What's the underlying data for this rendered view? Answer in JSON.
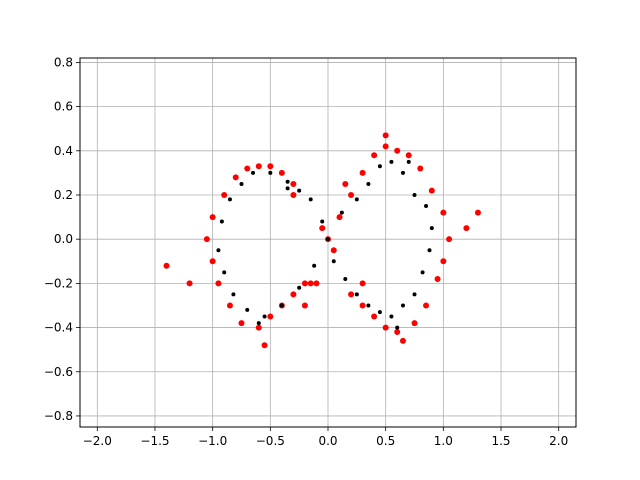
{
  "chart_data": {
    "type": "scatter",
    "title": "",
    "xlabel": "",
    "ylabel": "",
    "xlim": [
      -2.15,
      2.15
    ],
    "ylim": [
      -0.85,
      0.82
    ],
    "x_ticks": [
      -2.0,
      -1.5,
      -1.0,
      -0.5,
      0.0,
      0.5,
      1.0,
      1.5,
      2.0
    ],
    "x_tick_labels": [
      "−2.0",
      "−1.5",
      "−1.0",
      "−0.5",
      "0.0",
      "0.5",
      "1.0",
      "1.5",
      "2.0"
    ],
    "y_ticks": [
      -0.8,
      -0.6,
      -0.4,
      -0.2,
      0.0,
      0.2,
      0.4,
      0.6,
      0.8
    ],
    "y_tick_labels": [
      "−0.8",
      "−0.6",
      "−0.4",
      "−0.2",
      "0.0",
      "0.2",
      "0.4",
      "0.6",
      "0.8"
    ],
    "grid": true,
    "series": [
      {
        "color": "#ff0000",
        "marker_size": 3,
        "points": [
          [
            -0.1,
            -0.2
          ],
          [
            0.1,
            0.1
          ],
          [
            0.2,
            0.2
          ],
          [
            -0.2,
            -0.3
          ],
          [
            0.0,
            0.0
          ],
          [
            0.15,
            0.25
          ],
          [
            -0.15,
            -0.2
          ],
          [
            0.05,
            -0.05
          ],
          [
            -0.05,
            0.05
          ],
          [
            0.3,
            0.3
          ],
          [
            0.4,
            0.38
          ],
          [
            0.5,
            0.42
          ],
          [
            0.6,
            0.4
          ],
          [
            0.7,
            0.38
          ],
          [
            0.8,
            0.32
          ],
          [
            0.9,
            0.22
          ],
          [
            1.0,
            0.12
          ],
          [
            1.05,
            0.0
          ],
          [
            1.0,
            -0.1
          ],
          [
            0.95,
            -0.18
          ],
          [
            0.85,
            -0.3
          ],
          [
            0.75,
            -0.38
          ],
          [
            0.6,
            -0.42
          ],
          [
            0.5,
            -0.4
          ],
          [
            0.4,
            -0.35
          ],
          [
            0.3,
            -0.3
          ],
          [
            0.2,
            -0.25
          ],
          [
            -0.3,
            0.25
          ],
          [
            -0.4,
            0.3
          ],
          [
            -0.5,
            0.33
          ],
          [
            -0.6,
            0.33
          ],
          [
            -0.7,
            0.32
          ],
          [
            -0.8,
            0.28
          ],
          [
            -0.9,
            0.2
          ],
          [
            -1.0,
            0.1
          ],
          [
            -1.05,
            0.0
          ],
          [
            -1.0,
            -0.1
          ],
          [
            -0.95,
            -0.2
          ],
          [
            -0.85,
            -0.3
          ],
          [
            -0.75,
            -0.38
          ],
          [
            -0.6,
            -0.4
          ],
          [
            -0.5,
            -0.35
          ],
          [
            -0.4,
            -0.3
          ],
          [
            -0.3,
            -0.25
          ],
          [
            -0.2,
            -0.2
          ],
          [
            0.3,
            -0.2
          ],
          [
            -0.3,
            0.2
          ],
          [
            1.2,
            0.05
          ],
          [
            1.3,
            0.12
          ],
          [
            -1.4,
            -0.12
          ],
          [
            -1.2,
            -0.2
          ],
          [
            -0.55,
            -0.48
          ],
          [
            0.65,
            -0.46
          ],
          [
            0.5,
            0.47
          ]
        ]
      },
      {
        "color": "#000000",
        "marker_size": 2,
        "points": [
          [
            0.55,
            0.35
          ],
          [
            0.45,
            0.33
          ],
          [
            0.65,
            0.3
          ],
          [
            0.35,
            0.25
          ],
          [
            0.75,
            0.2
          ],
          [
            0.85,
            0.15
          ],
          [
            0.9,
            0.05
          ],
          [
            0.88,
            -0.05
          ],
          [
            0.82,
            -0.15
          ],
          [
            0.75,
            -0.25
          ],
          [
            0.65,
            -0.3
          ],
          [
            0.55,
            -0.35
          ],
          [
            0.45,
            -0.33
          ],
          [
            0.35,
            -0.3
          ],
          [
            0.25,
            -0.25
          ],
          [
            0.15,
            -0.18
          ],
          [
            0.05,
            -0.1
          ],
          [
            0.0,
            0.0
          ],
          [
            -0.05,
            0.08
          ],
          [
            -0.15,
            0.18
          ],
          [
            -0.25,
            0.22
          ],
          [
            -0.35,
            0.26
          ],
          [
            -0.5,
            0.3
          ],
          [
            -0.65,
            0.3
          ],
          [
            -0.75,
            0.25
          ],
          [
            -0.85,
            0.18
          ],
          [
            -0.92,
            0.08
          ],
          [
            -0.95,
            -0.05
          ],
          [
            -0.9,
            -0.15
          ],
          [
            -0.82,
            -0.25
          ],
          [
            -0.7,
            -0.32
          ],
          [
            -0.55,
            -0.35
          ],
          [
            -0.4,
            -0.3
          ],
          [
            -0.25,
            -0.22
          ],
          [
            -0.12,
            -0.12
          ],
          [
            0.12,
            0.12
          ],
          [
            0.25,
            0.18
          ],
          [
            -0.6,
            -0.38
          ],
          [
            0.6,
            -0.4
          ],
          [
            0.7,
            0.35
          ],
          [
            -0.35,
            0.23
          ]
        ]
      }
    ]
  }
}
